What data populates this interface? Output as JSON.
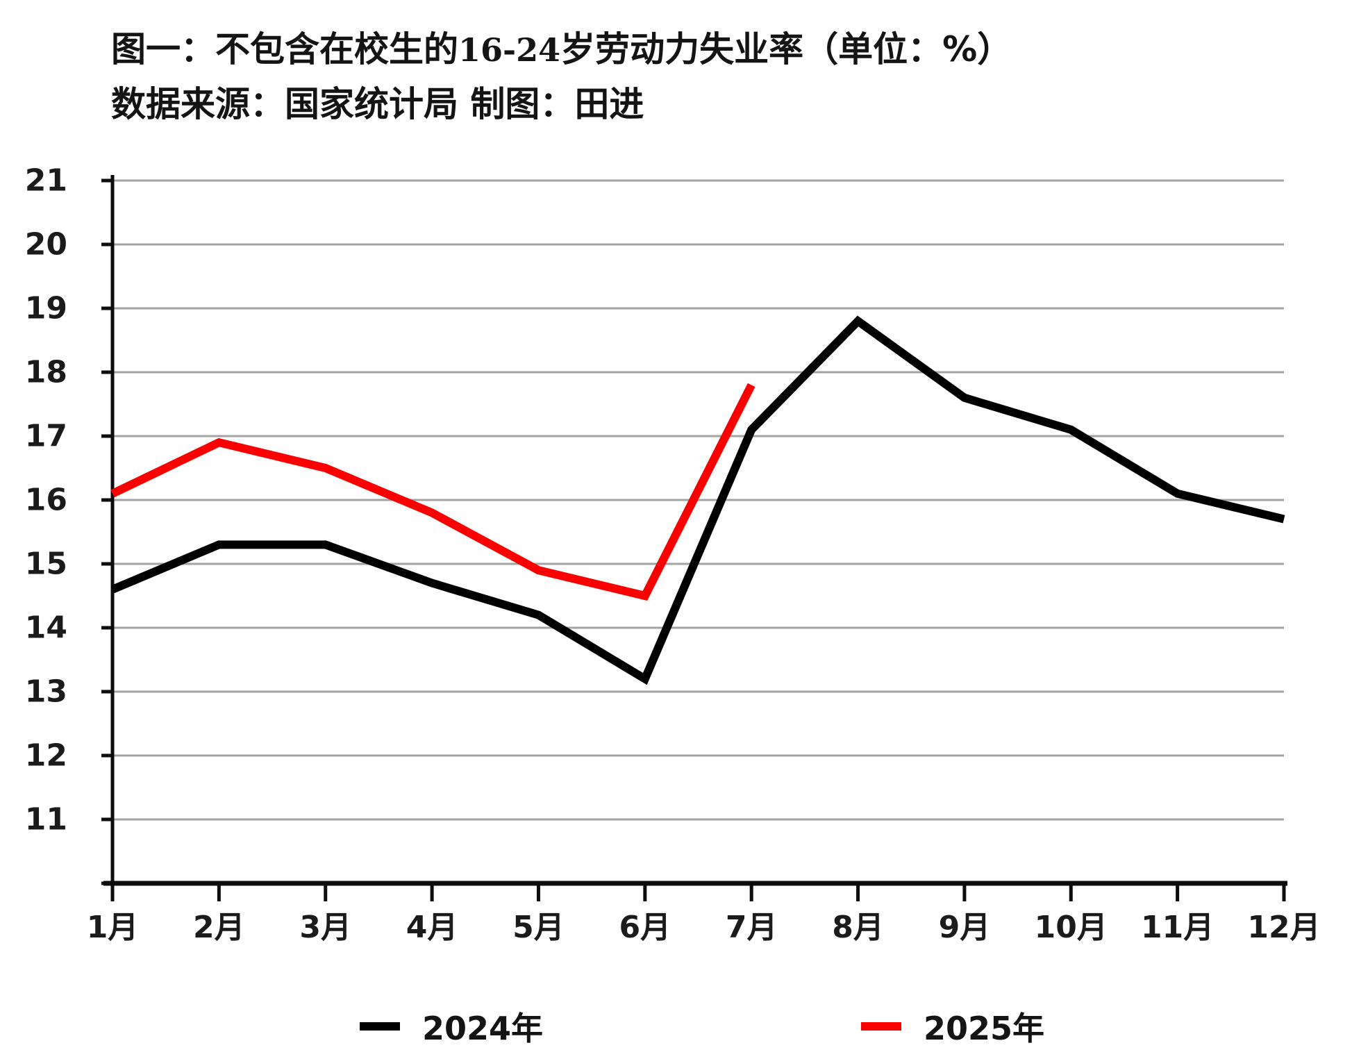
{
  "title": {
    "prefix": "图一：不包含在校生的",
    "range": "16-24",
    "suffix": "岁劳动力失业率（单位：%）",
    "source": "数据来源：国家统计局 制图：田进"
  },
  "colors": {
    "series_2024": "#000000",
    "series_2025": "#fb0000",
    "gridline": "#a3a3a3",
    "axis": "#0d0d0d",
    "tick_label": "#1b1b1b"
  },
  "chart_data": {
    "type": "line",
    "title": "图一：不包含在校生的16-24岁劳动力失业率（单位：%）",
    "source_note": "数据来源：国家统计局 制图：田进",
    "unit": "%",
    "categories": [
      "1月",
      "2月",
      "3月",
      "4月",
      "5月",
      "6月",
      "7月",
      "8月",
      "9月",
      "10月",
      "11月",
      "12月"
    ],
    "series": [
      {
        "name": "2024年",
        "color": "#000000",
        "values": [
          14.6,
          15.3,
          15.3,
          14.7,
          14.2,
          13.2,
          17.1,
          18.8,
          17.6,
          17.1,
          16.1,
          15.7
        ]
      },
      {
        "name": "2025年",
        "color": "#fb0000",
        "values": [
          16.1,
          16.9,
          16.5,
          15.8,
          14.9,
          14.5,
          17.8
        ]
      }
    ],
    "xlabel": "",
    "ylabel": "",
    "ylim": [
      10,
      21
    ],
    "y_tick_labels": [
      11,
      12,
      13,
      14,
      15,
      16,
      17,
      18,
      19,
      20,
      21
    ],
    "grid": true,
    "legend_position": "bottom"
  }
}
